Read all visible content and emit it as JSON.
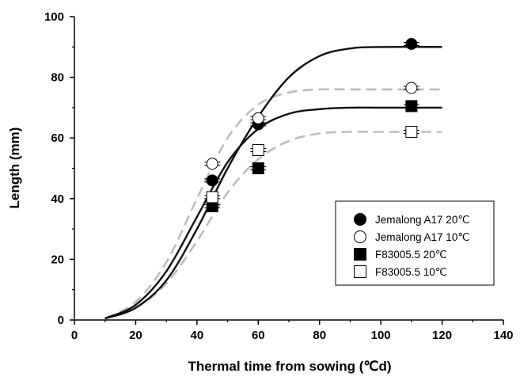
{
  "chart_data": {
    "type": "scatter",
    "title": "",
    "xlabel": "Thermal time from sowing (℃d)",
    "ylabel": "Length (mm)",
    "xlim": [
      0,
      140
    ],
    "ylim": [
      0,
      100
    ],
    "xticks": [
      0,
      20,
      40,
      60,
      80,
      100,
      120,
      140
    ],
    "yticks": [
      0,
      20,
      40,
      60,
      80,
      100
    ],
    "grid": false,
    "legend_position": "bottom-right",
    "series": [
      {
        "name": "Jemalong A17 20℃",
        "marker": "filled-circle",
        "x": [
          45,
          60,
          110
        ],
        "y": [
          46,
          64.5,
          91
        ],
        "fit_line": "solid-black",
        "fit_curve": {
          "x": [
            10,
            20,
            30,
            40,
            50,
            60,
            70,
            80,
            90,
            100,
            120
          ],
          "y": [
            0.5,
            4,
            13,
            30,
            50,
            67,
            80,
            87,
            89.5,
            90,
            90
          ]
        }
      },
      {
        "name": "Jemalong A17 10℃",
        "marker": "open-circle",
        "x": [
          45,
          60,
          110
        ],
        "y": [
          51.5,
          66.5,
          76.5
        ],
        "fit_line": "dashed-gray",
        "fit_curve": {
          "x": [
            10,
            20,
            30,
            40,
            50,
            60,
            70,
            80,
            90,
            100,
            120
          ],
          "y": [
            0.5,
            6,
            19,
            40,
            60,
            71,
            75,
            76,
            76,
            76,
            76
          ]
        }
      },
      {
        "name": "F83005.5 20℃",
        "marker": "filled-square",
        "x": [
          45,
          60,
          110
        ],
        "y": [
          37.5,
          50,
          70.5
        ],
        "fit_line": "solid-black",
        "fit_curve": {
          "x": [
            10,
            20,
            30,
            40,
            50,
            60,
            70,
            80,
            90,
            100,
            120
          ],
          "y": [
            0.5,
            5,
            16,
            34,
            52,
            63,
            68,
            69.5,
            70,
            70,
            70
          ]
        }
      },
      {
        "name": "F83005.5 10℃",
        "marker": "open-square",
        "x": [
          45,
          60,
          110
        ],
        "y": [
          40.5,
          56,
          62
        ],
        "fit_line": "dashed-gray",
        "fit_curve": {
          "x": [
            10,
            20,
            30,
            40,
            50,
            60,
            70,
            80,
            90,
            100,
            120
          ],
          "y": [
            0.5,
            4,
            12,
            26,
            42,
            53,
            59,
            61.5,
            62,
            62,
            62
          ]
        }
      }
    ],
    "colors": {
      "solid_line": "#111111",
      "dashed_line": "#bdbdbd",
      "marker": "#000000"
    }
  }
}
